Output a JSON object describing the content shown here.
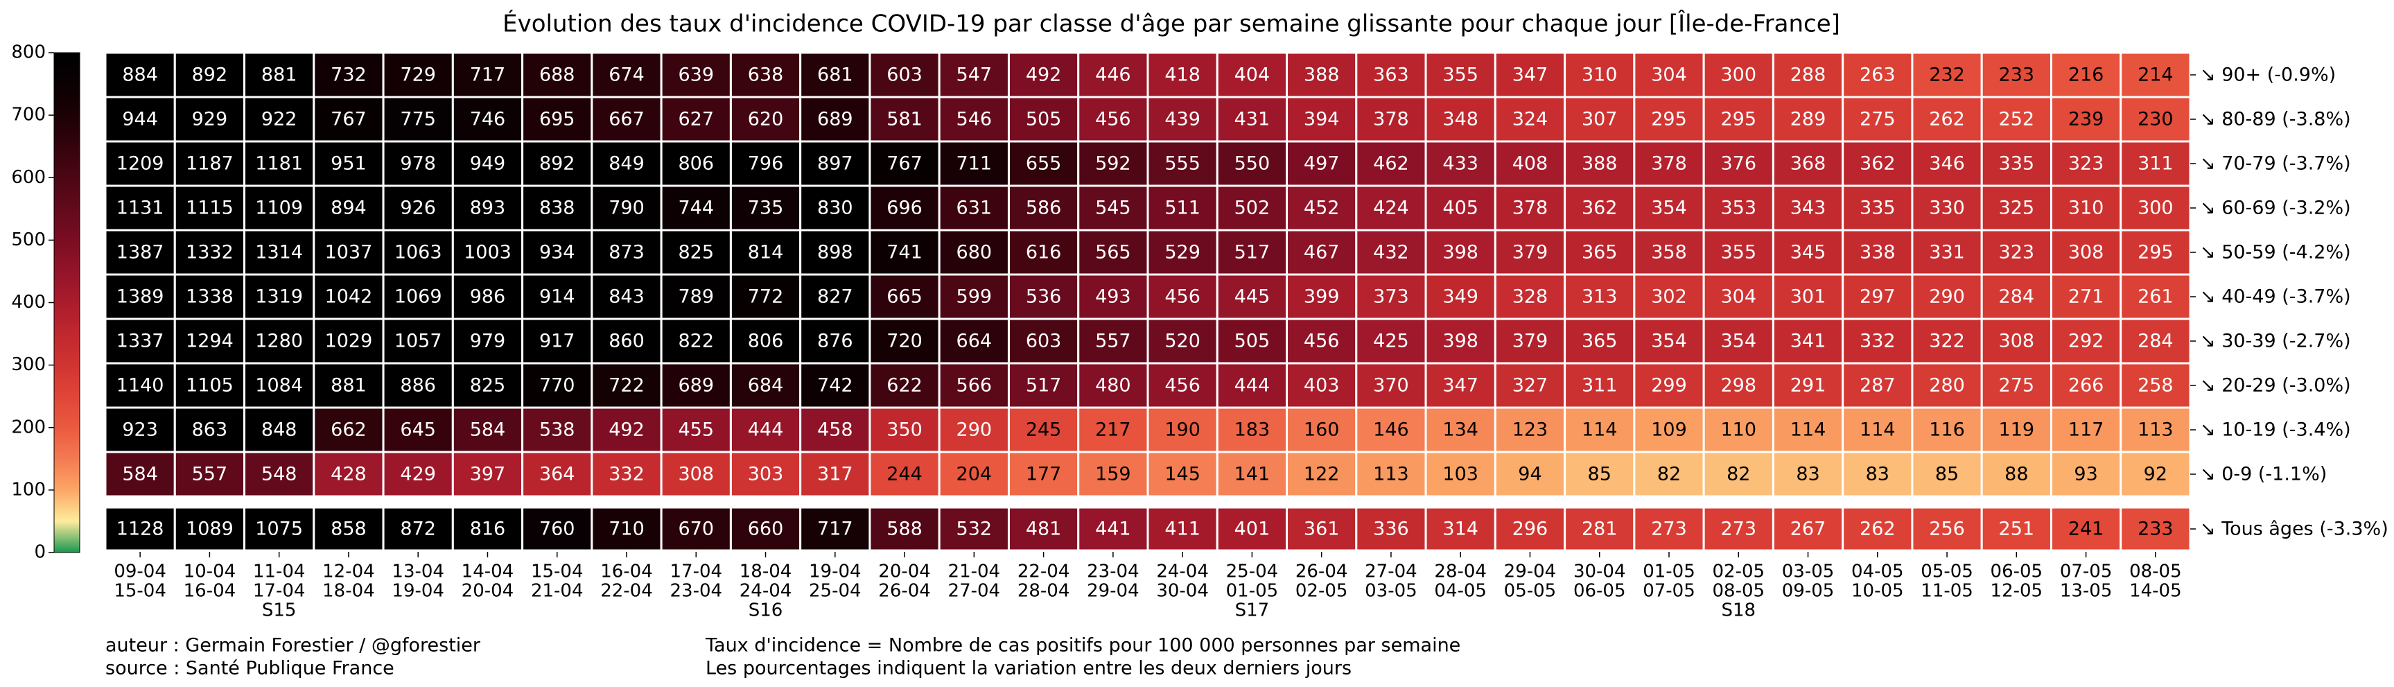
{
  "chart_data": {
    "type": "heatmap",
    "title": "Évolution des taux d'incidence COVID-19 par classe d'âge par semaine glissante pour chaque jour [Île-de-France]",
    "columns": [
      [
        "09-04",
        "15-04"
      ],
      [
        "10-04",
        "16-04"
      ],
      [
        "11-04",
        "17-04",
        "S15"
      ],
      [
        "12-04",
        "18-04"
      ],
      [
        "13-04",
        "19-04"
      ],
      [
        "14-04",
        "20-04"
      ],
      [
        "15-04",
        "21-04"
      ],
      [
        "16-04",
        "22-04"
      ],
      [
        "17-04",
        "23-04"
      ],
      [
        "18-04",
        "24-04",
        "S16"
      ],
      [
        "19-04",
        "25-04"
      ],
      [
        "20-04",
        "26-04"
      ],
      [
        "21-04",
        "27-04"
      ],
      [
        "22-04",
        "28-04"
      ],
      [
        "23-04",
        "29-04"
      ],
      [
        "24-04",
        "30-04"
      ],
      [
        "25-04",
        "01-05",
        "S17"
      ],
      [
        "26-04",
        "02-05"
      ],
      [
        "27-04",
        "03-05"
      ],
      [
        "28-04",
        "04-05"
      ],
      [
        "29-04",
        "05-05"
      ],
      [
        "30-04",
        "06-05"
      ],
      [
        "01-05",
        "07-05"
      ],
      [
        "02-05",
        "08-05",
        "S18"
      ],
      [
        "03-05",
        "09-05"
      ],
      [
        "04-05",
        "10-05"
      ],
      [
        "05-05",
        "11-05"
      ],
      [
        "06-05",
        "12-05"
      ],
      [
        "07-05",
        "13-05"
      ],
      [
        "08-05",
        "14-05"
      ]
    ],
    "rows": [
      {
        "name": "↘ 90+ (-0.9%)",
        "values": [
          884,
          892,
          881,
          732,
          729,
          717,
          688,
          674,
          639,
          638,
          681,
          603,
          547,
          492,
          446,
          418,
          404,
          388,
          363,
          355,
          347,
          310,
          304,
          300,
          288,
          263,
          232,
          233,
          216,
          214
        ]
      },
      {
        "name": "↘ 80-89 (-3.8%)",
        "values": [
          944,
          929,
          922,
          767,
          775,
          746,
          695,
          667,
          627,
          620,
          689,
          581,
          546,
          505,
          456,
          439,
          431,
          394,
          378,
          348,
          324,
          307,
          295,
          295,
          289,
          275,
          262,
          252,
          239,
          230
        ]
      },
      {
        "name": "↘ 70-79 (-3.7%)",
        "values": [
          1209,
          1187,
          1181,
          951,
          978,
          949,
          892,
          849,
          806,
          796,
          897,
          767,
          711,
          655,
          592,
          555,
          550,
          497,
          462,
          433,
          408,
          388,
          378,
          376,
          368,
          362,
          346,
          335,
          323,
          311
        ]
      },
      {
        "name": "↘ 60-69 (-3.2%)",
        "values": [
          1131,
          1115,
          1109,
          894,
          926,
          893,
          838,
          790,
          744,
          735,
          830,
          696,
          631,
          586,
          545,
          511,
          502,
          452,
          424,
          405,
          378,
          362,
          354,
          353,
          343,
          335,
          330,
          325,
          310,
          300
        ]
      },
      {
        "name": "↘ 50-59 (-4.2%)",
        "values": [
          1387,
          1332,
          1314,
          1037,
          1063,
          1003,
          934,
          873,
          825,
          814,
          898,
          741,
          680,
          616,
          565,
          529,
          517,
          467,
          432,
          398,
          379,
          365,
          358,
          355,
          345,
          338,
          331,
          323,
          308,
          295
        ]
      },
      {
        "name": "↘ 40-49 (-3.7%)",
        "values": [
          1389,
          1338,
          1319,
          1042,
          1069,
          986,
          914,
          843,
          789,
          772,
          827,
          665,
          599,
          536,
          493,
          456,
          445,
          399,
          373,
          349,
          328,
          313,
          302,
          304,
          301,
          297,
          290,
          284,
          271,
          261
        ]
      },
      {
        "name": "↘ 30-39 (-2.7%)",
        "values": [
          1337,
          1294,
          1280,
          1029,
          1057,
          979,
          917,
          860,
          822,
          806,
          876,
          720,
          664,
          603,
          557,
          520,
          505,
          456,
          425,
          398,
          379,
          365,
          354,
          354,
          341,
          332,
          322,
          308,
          292,
          284
        ]
      },
      {
        "name": "↘ 20-29 (-3.0%)",
        "values": [
          1140,
          1105,
          1084,
          881,
          886,
          825,
          770,
          722,
          689,
          684,
          742,
          622,
          566,
          517,
          480,
          456,
          444,
          403,
          370,
          347,
          327,
          311,
          299,
          298,
          291,
          287,
          280,
          275,
          266,
          258
        ]
      },
      {
        "name": "↘ 10-19 (-3.4%)",
        "values": [
          923,
          863,
          848,
          662,
          645,
          584,
          538,
          492,
          455,
          444,
          458,
          350,
          290,
          245,
          217,
          190,
          183,
          160,
          146,
          134,
          123,
          114,
          109,
          110,
          114,
          114,
          116,
          119,
          117,
          113
        ]
      },
      {
        "name": "↘ 0-9 (-1.1%)",
        "values": [
          584,
          557,
          548,
          428,
          429,
          397,
          364,
          332,
          308,
          303,
          317,
          244,
          204,
          177,
          159,
          145,
          141,
          122,
          113,
          103,
          94,
          85,
          82,
          82,
          83,
          83,
          85,
          88,
          93,
          92
        ]
      }
    ],
    "total_row": {
      "name": "↘ Tous âges (-3.3%)",
      "values": [
        1128,
        1089,
        1075,
        858,
        872,
        816,
        760,
        710,
        670,
        660,
        717,
        588,
        532,
        481,
        441,
        411,
        401,
        361,
        336,
        314,
        296,
        281,
        273,
        273,
        267,
        262,
        256,
        251,
        241,
        233
      ]
    },
    "clim": [
      0,
      800
    ],
    "cticks": [
      0,
      100,
      200,
      300,
      400,
      500,
      600,
      700,
      800
    ],
    "colormap": [
      "#1a9850",
      "#ffeb9c",
      "#fba666",
      "#f47a52",
      "#ea5a40",
      "#e04538",
      "#d03432",
      "#c0282e",
      "#aa1c2c",
      "#931429",
      "#7a0d22",
      "#620a1c",
      "#4c0614",
      "#34030c",
      "#1c0105",
      "#0a0002",
      "#000000"
    ],
    "annotations": [
      "auteur : Germain Forestier / @gforestier",
      "source : Santé Publique France",
      "Taux d'incidence = Nombre de cas positifs pour 100 000 personnes par semaine",
      "Les pourcentages indiquent la variation entre les deux derniers jours"
    ]
  }
}
